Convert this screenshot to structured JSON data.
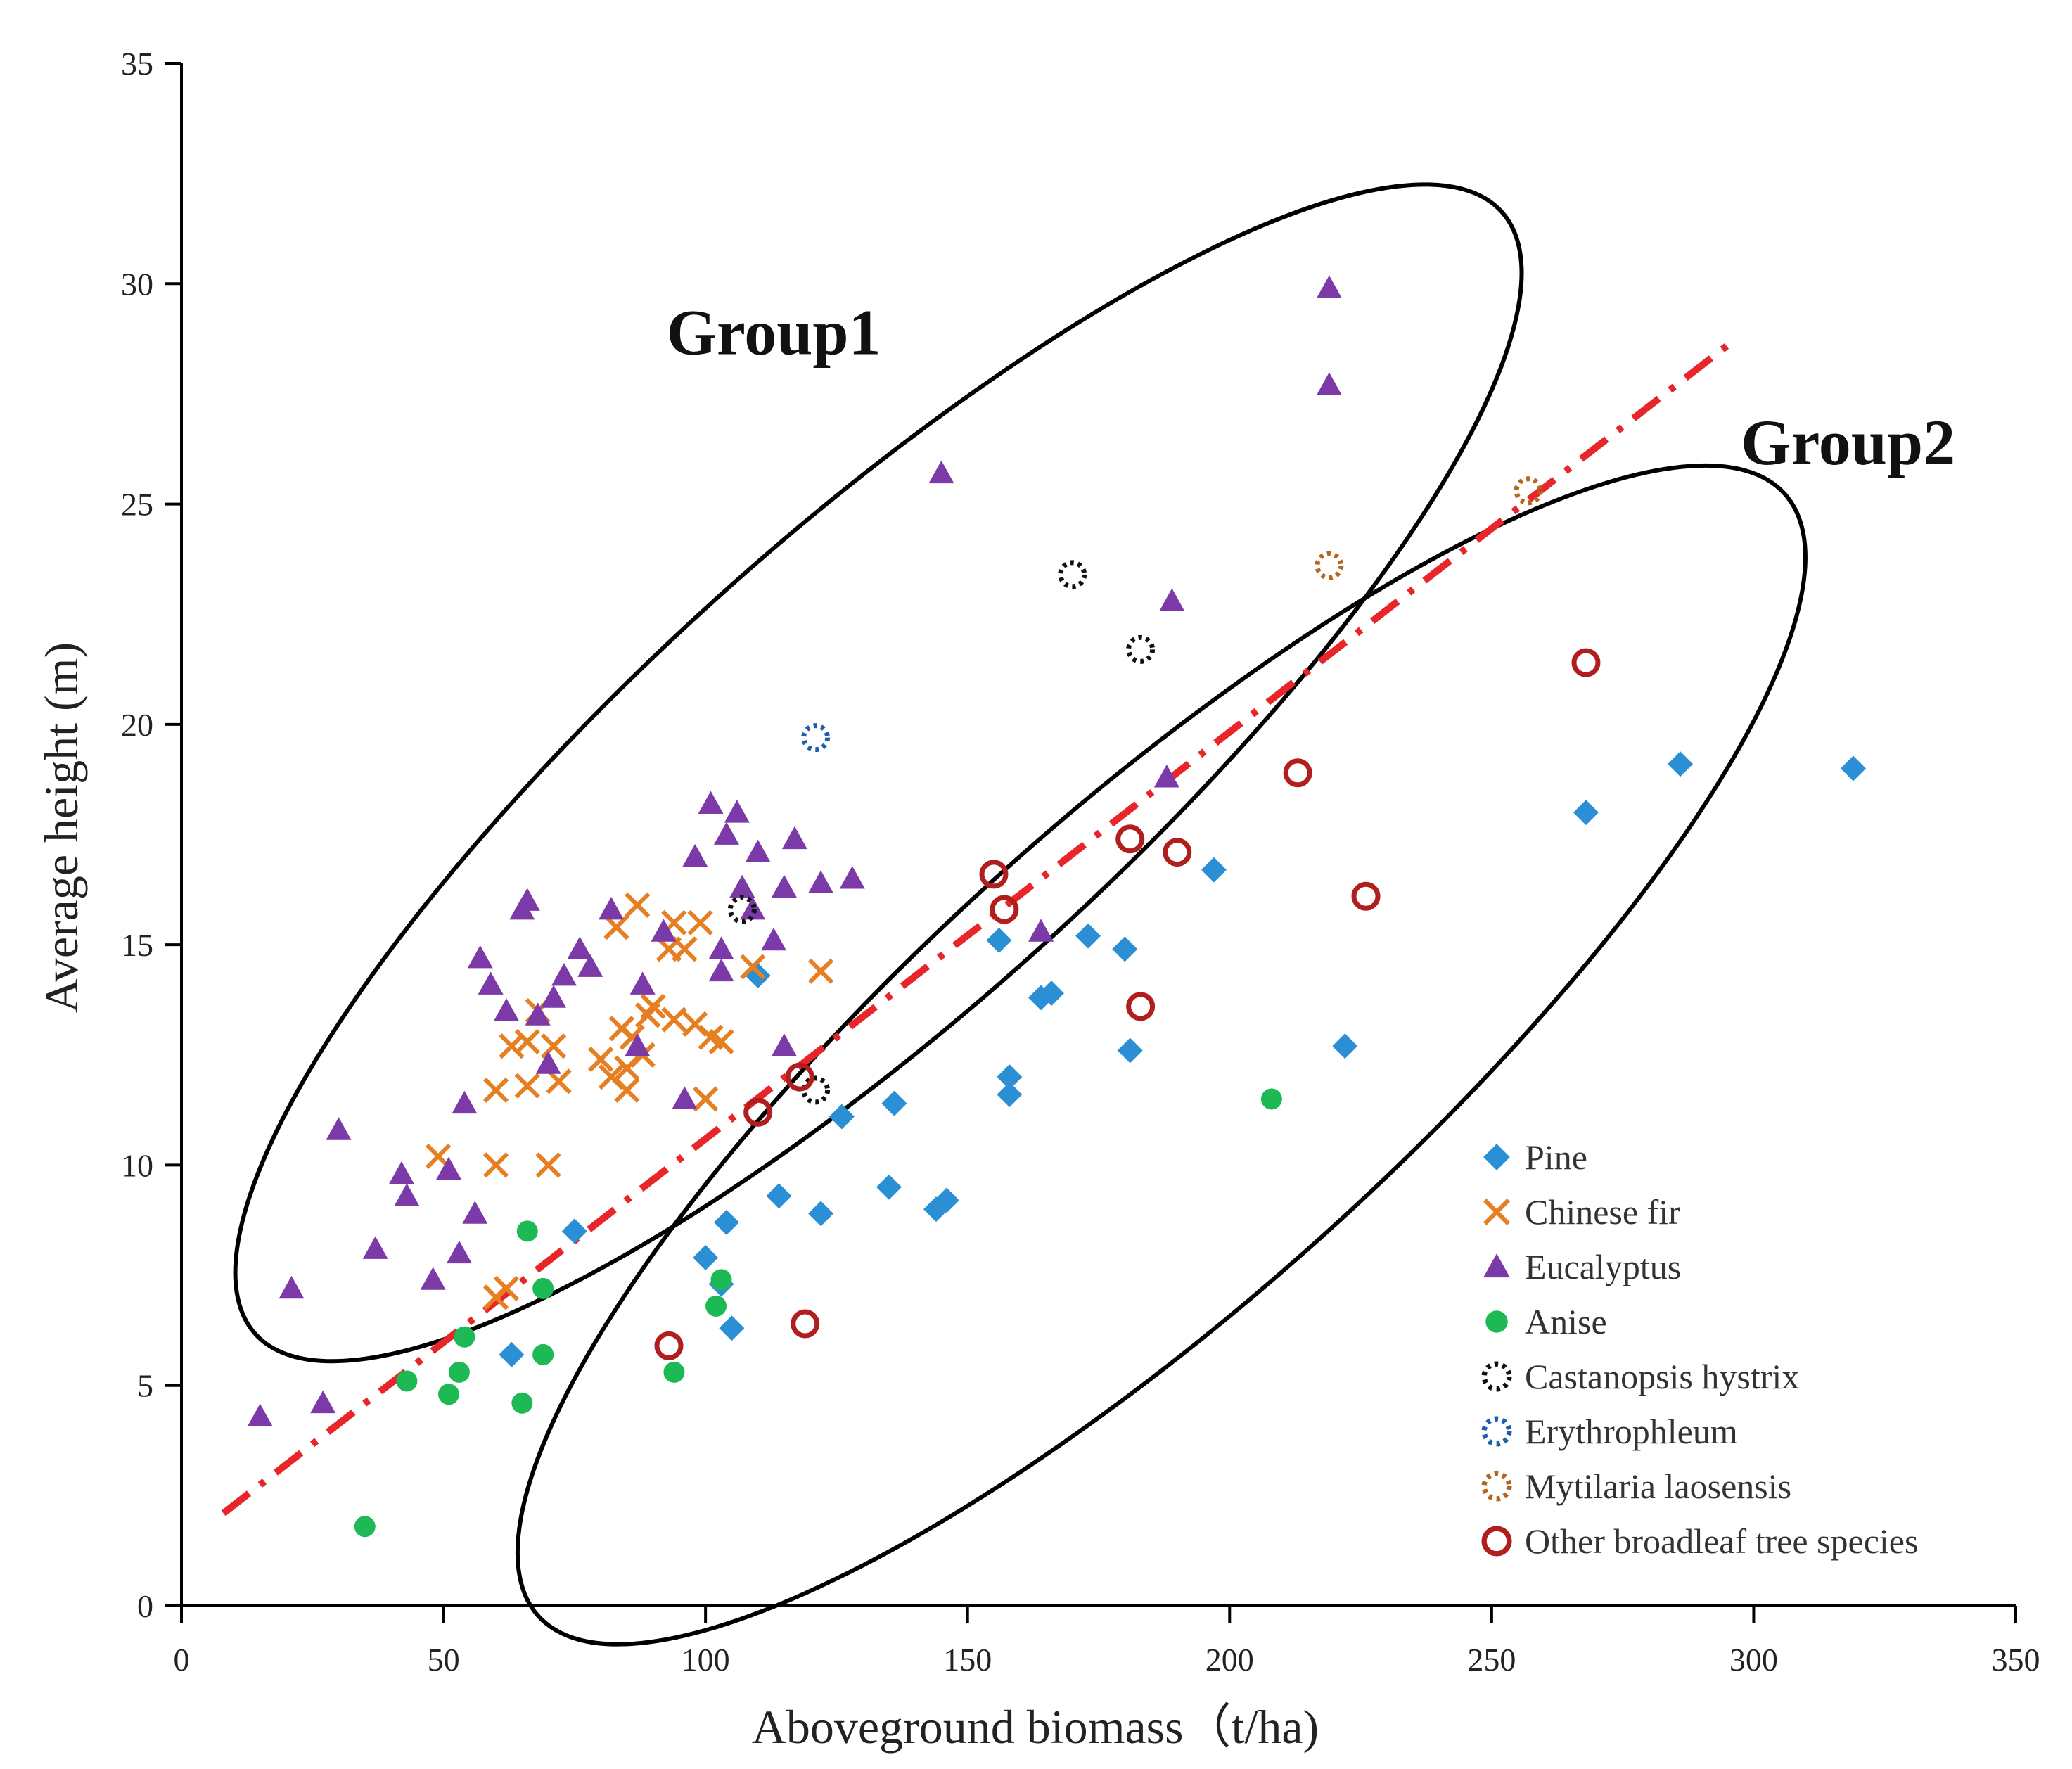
{
  "chart_data": {
    "type": "scatter",
    "title": "",
    "xlabel": "Aboveground biomass（t/ha)",
    "ylabel": "Average height (m)",
    "xlim": [
      0,
      350
    ],
    "ylim": [
      0,
      35
    ],
    "xticks": [
      0,
      50,
      100,
      150,
      200,
      250,
      300,
      350
    ],
    "yticks": [
      0,
      5,
      10,
      15,
      20,
      25,
      30,
      35
    ],
    "grid": false,
    "legend_position": "bottom-right",
    "annotations": [
      {
        "text": "Group1",
        "x": 113,
        "y": 28.4
      },
      {
        "text": "Group2",
        "x": 318,
        "y": 25.9
      }
    ],
    "regions": [
      {
        "name": "Group1",
        "cx": 133,
        "cy": 18.9,
        "rx": 160,
        "ry": 5.4,
        "angle_deg": -42
      },
      {
        "name": "Group2",
        "cx": 187,
        "cy": 12.5,
        "rx": 160,
        "ry": 5.5,
        "angle_deg": -42
      }
    ],
    "trendline": {
      "style": "dash-dot",
      "color": "#e8262a",
      "x": [
        8,
        295
      ],
      "y": [
        2.1,
        28.6
      ]
    },
    "series": [
      {
        "name": "Pine",
        "marker": "diamond",
        "color": "#2a8fd4",
        "points": [
          [
            63,
            5.7
          ],
          [
            75,
            8.5
          ],
          [
            100,
            7.9
          ],
          [
            103,
            7.3
          ],
          [
            104,
            8.7
          ],
          [
            105,
            6.3
          ],
          [
            110,
            14.3
          ],
          [
            114,
            9.3
          ],
          [
            122,
            8.9
          ],
          [
            126,
            11.1
          ],
          [
            135,
            9.5
          ],
          [
            136,
            11.4
          ],
          [
            144,
            9.0
          ],
          [
            146,
            9.2
          ],
          [
            156,
            15.1
          ],
          [
            158,
            12.0
          ],
          [
            158,
            11.6
          ],
          [
            164,
            13.8
          ],
          [
            166,
            13.9
          ],
          [
            173,
            15.2
          ],
          [
            180,
            14.9
          ],
          [
            181,
            12.6
          ],
          [
            197,
            16.7
          ],
          [
            222,
            12.7
          ],
          [
            268,
            18.0
          ],
          [
            286,
            19.1
          ],
          [
            319,
            19.0
          ]
        ]
      },
      {
        "name": "Chinese fir",
        "marker": "x",
        "color": "#e67e22",
        "points": [
          [
            49,
            10.2
          ],
          [
            60,
            10.0
          ],
          [
            60,
            7.0
          ],
          [
            62,
            7.2
          ],
          [
            60,
            11.7
          ],
          [
            63,
            12.7
          ],
          [
            66,
            11.8
          ],
          [
            66,
            12.8
          ],
          [
            68,
            13.5
          ],
          [
            70,
            10.0
          ],
          [
            71,
            12.7
          ],
          [
            72,
            11.9
          ],
          [
            80,
            12.4
          ],
          [
            82,
            12.0
          ],
          [
            83,
            15.4
          ],
          [
            84,
            13.1
          ],
          [
            85,
            12.2
          ],
          [
            85,
            11.7
          ],
          [
            86,
            12.9
          ],
          [
            87,
            15.9
          ],
          [
            88,
            12.5
          ],
          [
            89,
            13.4
          ],
          [
            90,
            13.6
          ],
          [
            93,
            14.9
          ],
          [
            94,
            13.3
          ],
          [
            94,
            15.5
          ],
          [
            96,
            14.9
          ],
          [
            98,
            13.2
          ],
          [
            99,
            15.5
          ],
          [
            100,
            11.5
          ],
          [
            101,
            12.9
          ],
          [
            103,
            12.8
          ],
          [
            109,
            14.5
          ],
          [
            122,
            14.4
          ]
        ]
      },
      {
        "name": "Eucalyptus",
        "marker": "triangle",
        "color": "#7b3aa8",
        "points": [
          [
            15,
            4.3
          ],
          [
            21,
            7.2
          ],
          [
            27,
            4.6
          ],
          [
            30,
            10.8
          ],
          [
            37,
            8.1
          ],
          [
            42,
            9.8
          ],
          [
            43,
            9.3
          ],
          [
            48,
            7.4
          ],
          [
            51,
            9.9
          ],
          [
            53,
            8.0
          ],
          [
            54,
            11.4
          ],
          [
            56,
            8.9
          ],
          [
            57,
            14.7
          ],
          [
            59,
            14.1
          ],
          [
            62,
            13.5
          ],
          [
            65,
            15.8
          ],
          [
            66,
            16.0
          ],
          [
            68,
            13.4
          ],
          [
            70,
            12.3
          ],
          [
            71,
            13.8
          ],
          [
            73,
            14.3
          ],
          [
            76,
            14.9
          ],
          [
            78,
            14.5
          ],
          [
            82,
            15.8
          ],
          [
            87,
            12.7
          ],
          [
            88,
            14.1
          ],
          [
            92,
            15.3
          ],
          [
            96,
            11.5
          ],
          [
            98,
            17.0
          ],
          [
            101,
            18.2
          ],
          [
            103,
            14.4
          ],
          [
            103,
            14.9
          ],
          [
            104,
            17.5
          ],
          [
            106,
            18.0
          ],
          [
            107,
            16.3
          ],
          [
            109,
            15.8
          ],
          [
            110,
            17.1
          ],
          [
            113,
            15.1
          ],
          [
            115,
            12.7
          ],
          [
            115,
            16.3
          ],
          [
            117,
            17.4
          ],
          [
            122,
            16.4
          ],
          [
            128,
            16.5
          ],
          [
            145,
            25.7
          ],
          [
            164,
            15.3
          ],
          [
            188,
            18.8
          ],
          [
            189,
            22.8
          ],
          [
            219,
            29.9
          ],
          [
            219,
            27.7
          ]
        ]
      },
      {
        "name": "Anise",
        "marker": "circle",
        "color": "#1db954",
        "points": [
          [
            35,
            1.8
          ],
          [
            43,
            5.1
          ],
          [
            51,
            4.8
          ],
          [
            53,
            5.3
          ],
          [
            54,
            6.1
          ],
          [
            65,
            4.6
          ],
          [
            66,
            8.5
          ],
          [
            69,
            5.7
          ],
          [
            69,
            7.2
          ],
          [
            94,
            5.3
          ],
          [
            102,
            6.8
          ],
          [
            103,
            7.4
          ],
          [
            208,
            11.5
          ]
        ]
      },
      {
        "name": "Castanopsis hystrix",
        "marker": "dotted-circle",
        "color": "#111111",
        "points": [
          [
            107,
            15.8
          ],
          [
            121,
            11.7
          ],
          [
            170,
            23.4
          ],
          [
            183,
            21.7
          ]
        ]
      },
      {
        "name": "Erythrophleum",
        "marker": "dotted-circle",
        "color": "#1f5fa8",
        "points": [
          [
            121,
            19.7
          ]
        ]
      },
      {
        "name": "Mytilaria laosensis",
        "marker": "dotted-circle",
        "color": "#b5651d",
        "points": [
          [
            219,
            23.6
          ],
          [
            257,
            25.3
          ]
        ]
      },
      {
        "name": "Other broadleaf tree species",
        "marker": "ring",
        "color": "#b01e1e",
        "points": [
          [
            93,
            5.9
          ],
          [
            110,
            11.2
          ],
          [
            118,
            12.0
          ],
          [
            119,
            6.4
          ],
          [
            155,
            16.6
          ],
          [
            157,
            15.8
          ],
          [
            181,
            17.4
          ],
          [
            183,
            13.6
          ],
          [
            190,
            17.1
          ],
          [
            213,
            18.9
          ],
          [
            226,
            16.1
          ],
          [
            268,
            21.4
          ]
        ]
      }
    ]
  }
}
